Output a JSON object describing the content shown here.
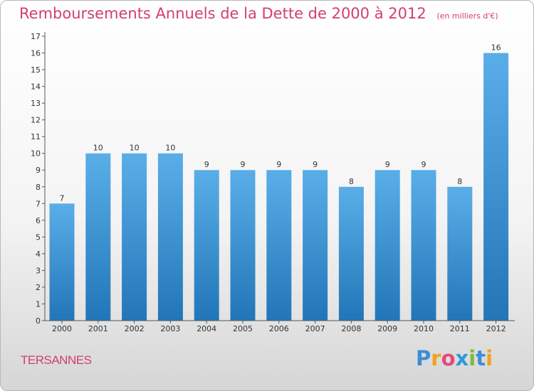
{
  "chart_data": {
    "type": "bar",
    "title": "Remboursements Annuels de la Dette de 2000 à 2012",
    "subtitle": "(en milliers d'€)",
    "categories": [
      "2000",
      "2001",
      "2002",
      "2003",
      "2004",
      "2005",
      "2006",
      "2007",
      "2008",
      "2009",
      "2010",
      "2011",
      "2012"
    ],
    "values": [
      7,
      10,
      10,
      10,
      9,
      9,
      9,
      9,
      8,
      9,
      9,
      8,
      16
    ],
    "y_ticks": [
      0,
      1,
      2,
      3,
      4,
      5,
      6,
      7,
      8,
      9,
      10,
      11,
      12,
      13,
      14,
      15,
      16,
      17
    ],
    "ylim": [
      0,
      17
    ],
    "bar_color_top": "#5aaee8",
    "bar_color_bottom": "#2276b8",
    "grid": false
  },
  "commune": "TERSANNES",
  "logo": [
    "P",
    "r",
    "o",
    "x",
    "i",
    "t",
    "i"
  ]
}
